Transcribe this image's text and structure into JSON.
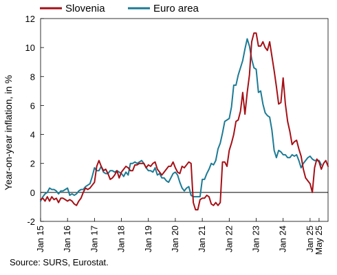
{
  "chart_data": {
    "type": "line",
    "ylabel": "Year-on-year inflation, in %",
    "xlabel": "",
    "ylim": [
      -2,
      12
    ],
    "yticks": [
      -2,
      0,
      2,
      4,
      6,
      8,
      10,
      12
    ],
    "x_start": "Jan 15",
    "x_end": "May 25",
    "xticks": [
      {
        "label": "Jan 15",
        "index": 0
      },
      {
        "label": "Jan 16",
        "index": 12
      },
      {
        "label": "Jan 17",
        "index": 24
      },
      {
        "label": "Jan 18",
        "index": 36
      },
      {
        "label": "Jan 19",
        "index": 48
      },
      {
        "label": "Jan 20",
        "index": 60
      },
      {
        "label": "Jan 21",
        "index": 72
      },
      {
        "label": "Jan 22",
        "index": 84
      },
      {
        "label": "Jan 23",
        "index": 96
      },
      {
        "label": "Jan 24",
        "index": 108
      },
      {
        "label": "Jan 25",
        "index": 120
      },
      {
        "label": "May 25",
        "index": 124
      }
    ],
    "grid": false,
    "legend_position": "top",
    "series": [
      {
        "name": "Slovenia",
        "color": "#A50F15",
        "values": [
          -0.5,
          -0.4,
          -0.6,
          -0.3,
          -0.6,
          -0.3,
          -0.5,
          -0.4,
          -0.7,
          -0.4,
          -0.4,
          -0.5,
          -0.6,
          -0.5,
          -0.6,
          -0.8,
          -0.9,
          -0.6,
          -0.4,
          0.0,
          0.3,
          0.2,
          0.3,
          0.5,
          0.7,
          1.8,
          2.2,
          1.8,
          1.5,
          1.6,
          1.3,
          0.9,
          1.0,
          1.2,
          1.5,
          1.0,
          1.4,
          1.6,
          1.8,
          1.7,
          1.5,
          1.5,
          1.9,
          1.9,
          2.0,
          2.0,
          2.0,
          1.7,
          1.9,
          1.8,
          2.0,
          2.1,
          1.6,
          1.4,
          1.2,
          1.4,
          1.6,
          1.8,
          1.8,
          2.1,
          1.7,
          1.4,
          1.3,
          1.8,
          1.7,
          1.9,
          2.1,
          2.0,
          -0.7,
          -1.2,
          -1.2,
          -0.5,
          -0.4,
          -0.4,
          -0.2,
          -0.3,
          -0.8,
          -0.9,
          -0.7,
          -0.9,
          -0.7,
          2.1,
          2.1,
          1.8,
          2.9,
          3.4,
          4.0,
          4.9,
          5.0,
          5.6,
          6.9,
          5.4,
          6.9,
          8.1,
          10.4,
          11.0,
          11.0,
          10.1,
          10.1,
          10.4,
          10.0,
          9.8,
          10.4,
          9.4,
          8.4,
          7.3,
          6.1,
          6.2,
          7.9,
          6.1,
          4.9,
          4.2,
          3.3,
          3.5,
          3.6,
          3.0,
          2.5,
          1.6,
          1.0,
          0.8,
          0.6,
          0.0,
          1.7,
          2.3,
          2.1,
          1.6,
          2.0,
          2.2,
          1.8
        ]
      },
      {
        "name": "Euro area",
        "color": "#1B7A94",
        "values": [
          -0.6,
          -0.3,
          -0.1,
          0.0,
          0.3,
          0.2,
          0.2,
          0.1,
          -0.1,
          0.1,
          0.1,
          0.2,
          0.3,
          -0.2,
          -0.1,
          -0.2,
          -0.1,
          0.1,
          0.2,
          0.2,
          0.4,
          0.5,
          0.6,
          1.1,
          1.7,
          1.5,
          1.5,
          1.8,
          1.4,
          1.3,
          1.3,
          1.5,
          1.5,
          1.4,
          1.5,
          1.4,
          1.3,
          1.1,
          1.4,
          1.2,
          2.0,
          2.0,
          2.1,
          2.0,
          2.1,
          2.2,
          2.0,
          1.7,
          1.5,
          1.5,
          1.4,
          1.7,
          1.2,
          1.3,
          1.0,
          1.0,
          0.8,
          0.7,
          1.0,
          1.3,
          1.4,
          1.2,
          0.7,
          0.3,
          0.1,
          0.3,
          0.4,
          -0.2,
          -0.3,
          -0.3,
          -0.3,
          -0.3,
          0.9,
          0.9,
          1.3,
          1.6,
          2.0,
          1.9,
          2.2,
          3.0,
          3.4,
          4.1,
          4.9,
          5.0,
          5.1,
          5.9,
          7.4,
          7.4,
          8.1,
          8.6,
          9.1,
          9.9,
          10.6,
          10.1,
          9.2,
          8.6,
          8.5,
          6.9,
          7.0,
          6.1,
          5.5,
          5.3,
          5.2,
          4.3,
          2.9,
          2.4,
          2.9,
          2.8,
          2.6,
          2.6,
          2.4,
          2.4,
          2.6,
          2.5,
          2.6,
          2.2,
          1.7,
          2.0,
          2.2,
          2.4,
          2.5,
          2.3,
          2.2,
          2.2,
          2.2,
          1.9
        ]
      }
    ],
    "source": "Source: SURS, Eurostat."
  }
}
